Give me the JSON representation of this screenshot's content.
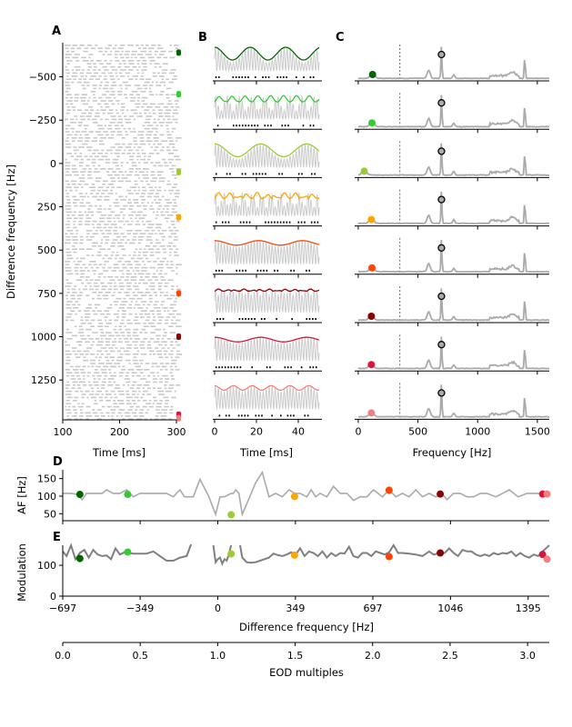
{
  "colors": {
    "series": [
      "#006400",
      "#32cd32",
      "#9acd32",
      "#ffa500",
      "#ff4500",
      "#8b0000",
      "#dc143c",
      "#f08080"
    ],
    "gray_trace": "#aaaaaa",
    "dark_trace": "#808080",
    "raster": "#c8c8c8"
  },
  "chart_data": [
    {
      "panel": "A",
      "type": "scatter",
      "title": "",
      "xlabel": "Time [ms]",
      "ylabel": "Difference frequency [Hz]",
      "xlim": [
        100,
        300
      ],
      "ylim": [
        1480,
        -697
      ],
      "xticks": [
        "100",
        "200",
        "300"
      ],
      "yticks": [
        "−500",
        "−250",
        "0",
        "250",
        "500",
        "750",
        "1000",
        "1250"
      ],
      "ytick_values": [
        -500,
        -250,
        0,
        250,
        500,
        750,
        1000,
        1250
      ],
      "marker_df": [
        -640,
        -400,
        50,
        310,
        750,
        1000,
        1450,
        1470
      ],
      "description": "spike raster (gray dashes) for each difference frequency"
    },
    {
      "panel": "B",
      "type": "line",
      "xlabel": "Time [ms]",
      "xlim": [
        0,
        50
      ],
      "xticks": [
        "0",
        "20",
        "40"
      ],
      "rows": 8,
      "envelope_periods_ms": [
        17,
        6,
        22,
        4.5,
        21,
        4,
        22,
        9
      ],
      "description": "EOD carrier (gray), beat envelope (color), spikes (black dots)"
    },
    {
      "panel": "C",
      "type": "line",
      "xlabel": "Frequency [Hz]",
      "xlim": [
        -30,
        1600
      ],
      "xticks": [
        "0",
        "500",
        "1000",
        "1500"
      ],
      "xtick_values": [
        0,
        500,
        1000,
        1500
      ],
      "dashed_line_hz": 349,
      "eod_peak_hz": 697,
      "harmonic_peak_hz": 1395,
      "colored_marker_hz": [
        120,
        115,
        50,
        110,
        115,
        110,
        110,
        110
      ],
      "description": "power spectra with EOD marker (gray circle) and AF marker (colored)"
    },
    {
      "panel": "D",
      "type": "line",
      "ylabel": "AF [Hz]",
      "xlim": [
        -697,
        1490
      ],
      "ylim": [
        30,
        175
      ],
      "yticks": [
        "50",
        "100",
        "150"
      ],
      "ytick_values": [
        50,
        100,
        150
      ],
      "x": [
        -697,
        -660,
        -630,
        -610,
        -590,
        -560,
        -520,
        -500,
        -470,
        -440,
        -410,
        -380,
        -350,
        -300,
        -260,
        -230,
        -200,
        -170,
        -150,
        -110,
        -80,
        -40,
        -10,
        10,
        30,
        60,
        70,
        80,
        95,
        110,
        130,
        150,
        170,
        200,
        230,
        260,
        290,
        320,
        345,
        370,
        400,
        420,
        440,
        460,
        490,
        520,
        550,
        580,
        610,
        640,
        670,
        700,
        720,
        740,
        770,
        800,
        830,
        860,
        890,
        920,
        950,
        980,
        1010,
        1030,
        1060,
        1090,
        1120,
        1150,
        1180,
        1210,
        1250,
        1280,
        1310,
        1350,
        1390,
        1420,
        1450,
        1490
      ],
      "y": [
        108,
        108,
        105,
        90,
        108,
        108,
        108,
        118,
        108,
        108,
        118,
        98,
        108,
        108,
        108,
        108,
        98,
        118,
        98,
        98,
        148,
        98,
        48,
        98,
        98,
        108,
        108,
        118,
        108,
        48,
        78,
        108,
        138,
        168,
        98,
        108,
        98,
        118,
        108,
        108,
        98,
        118,
        98,
        108,
        98,
        128,
        108,
        108,
        88,
        98,
        98,
        118,
        108,
        98,
        118,
        98,
        108,
        98,
        118,
        98,
        108,
        98,
        105,
        90,
        108,
        108,
        98,
        98,
        108,
        108,
        98,
        108,
        118,
        98,
        108,
        108,
        108,
        108
      ],
      "markers": [
        {
          "x": -620,
          "y": 105
        },
        {
          "x": -405,
          "y": 105
        },
        {
          "x": 60,
          "y": 47
        },
        {
          "x": 345,
          "y": 99
        },
        {
          "x": 770,
          "y": 117
        },
        {
          "x": 1000,
          "y": 106
        },
        {
          "x": 1460,
          "y": 106
        },
        {
          "x": 1480,
          "y": 106
        }
      ]
    },
    {
      "panel": "E",
      "type": "line",
      "ylabel": "Modulation",
      "xlabel": "Difference frequency [Hz]",
      "xlim": [
        -697,
        1490
      ],
      "ylim": [
        0,
        165
      ],
      "yticks": [
        "0",
        "100"
      ],
      "ytick_values": [
        0,
        100
      ],
      "xticks": [
        "−697",
        "−349",
        "0",
        "349",
        "697",
        "1046",
        "1395"
      ],
      "xtick_values": [
        -697,
        -349,
        0,
        349,
        697,
        1046,
        1395
      ],
      "segments": [
        {
          "x": [
            -697,
            -680,
            -660,
            -640,
            -620,
            -600,
            -580,
            -560,
            -540,
            -520,
            -500,
            -480,
            -460,
            -440,
            -420,
            -400,
            -380,
            -360,
            -320,
            -290,
            -260,
            -230,
            -200,
            -170,
            -140,
            -120
          ],
          "y": [
            145,
            130,
            165,
            120,
            140,
            150,
            125,
            150,
            135,
            130,
            132,
            120,
            155,
            135,
            142,
            140,
            138,
            138,
            138,
            145,
            130,
            115,
            115,
            125,
            130,
            168
          ]
        },
        {
          "x": [
            -20,
            -10,
            0,
            10,
            20,
            30,
            40,
            50,
            60
          ],
          "y": [
            165,
            110,
            120,
            125,
            105,
            120,
            115,
            135,
            165
          ]
        },
        {
          "x": [
            100,
            110,
            130,
            150,
            170,
            190,
            210,
            230,
            250,
            270,
            290,
            310,
            330,
            350,
            370,
            390,
            410,
            430,
            450,
            470,
            490,
            510,
            530,
            550,
            570,
            590,
            610,
            630,
            650,
            670,
            690,
            710,
            730,
            750,
            770,
            790,
            810,
            830,
            860,
            890,
            920,
            950,
            970,
            1000,
            1020,
            1040,
            1060,
            1080,
            1100,
            1120,
            1140,
            1160,
            1180,
            1200,
            1220,
            1240,
            1260,
            1280,
            1300,
            1320,
            1340,
            1360,
            1380,
            1400,
            1420,
            1440,
            1460,
            1490
          ],
          "y": [
            165,
            125,
            110,
            108,
            110,
            115,
            120,
            125,
            138,
            133,
            130,
            135,
            142,
            135,
            155,
            130,
            145,
            140,
            130,
            145,
            125,
            140,
            130,
            140,
            138,
            160,
            130,
            125,
            140,
            140,
            130,
            145,
            140,
            135,
            142,
            165,
            140,
            140,
            138,
            135,
            130,
            145,
            135,
            140,
            140,
            155,
            140,
            130,
            150,
            145,
            145,
            135,
            130,
            135,
            130,
            140,
            135,
            140,
            138,
            145,
            130,
            140,
            130,
            125,
            135,
            130,
            145,
            165
          ]
        }
      ],
      "markers": [
        {
          "x": -620,
          "y": 122
        },
        {
          "x": -405,
          "y": 143
        },
        {
          "x": 60,
          "y": 137
        },
        {
          "x": 345,
          "y": 133
        },
        {
          "x": 770,
          "y": 128
        },
        {
          "x": 1000,
          "y": 140
        },
        {
          "x": 1460,
          "y": 135
        },
        {
          "x": 1480,
          "y": 120
        }
      ]
    },
    {
      "panel": "EOD-axis",
      "type": "axis",
      "xlabel": "EOD multiples",
      "xlim": [
        0,
        3.14
      ],
      "xticks": [
        "0.0",
        "0.5",
        "1.0",
        "1.5",
        "2.0",
        "2.5",
        "3.0"
      ],
      "xtick_values": [
        0,
        0.5,
        1.0,
        1.5,
        2.0,
        2.5,
        3.0
      ]
    }
  ],
  "labels": {
    "panel_a": "A",
    "panel_b": "B",
    "panel_c": "C",
    "panel_d": "D",
    "panel_e": "E"
  }
}
